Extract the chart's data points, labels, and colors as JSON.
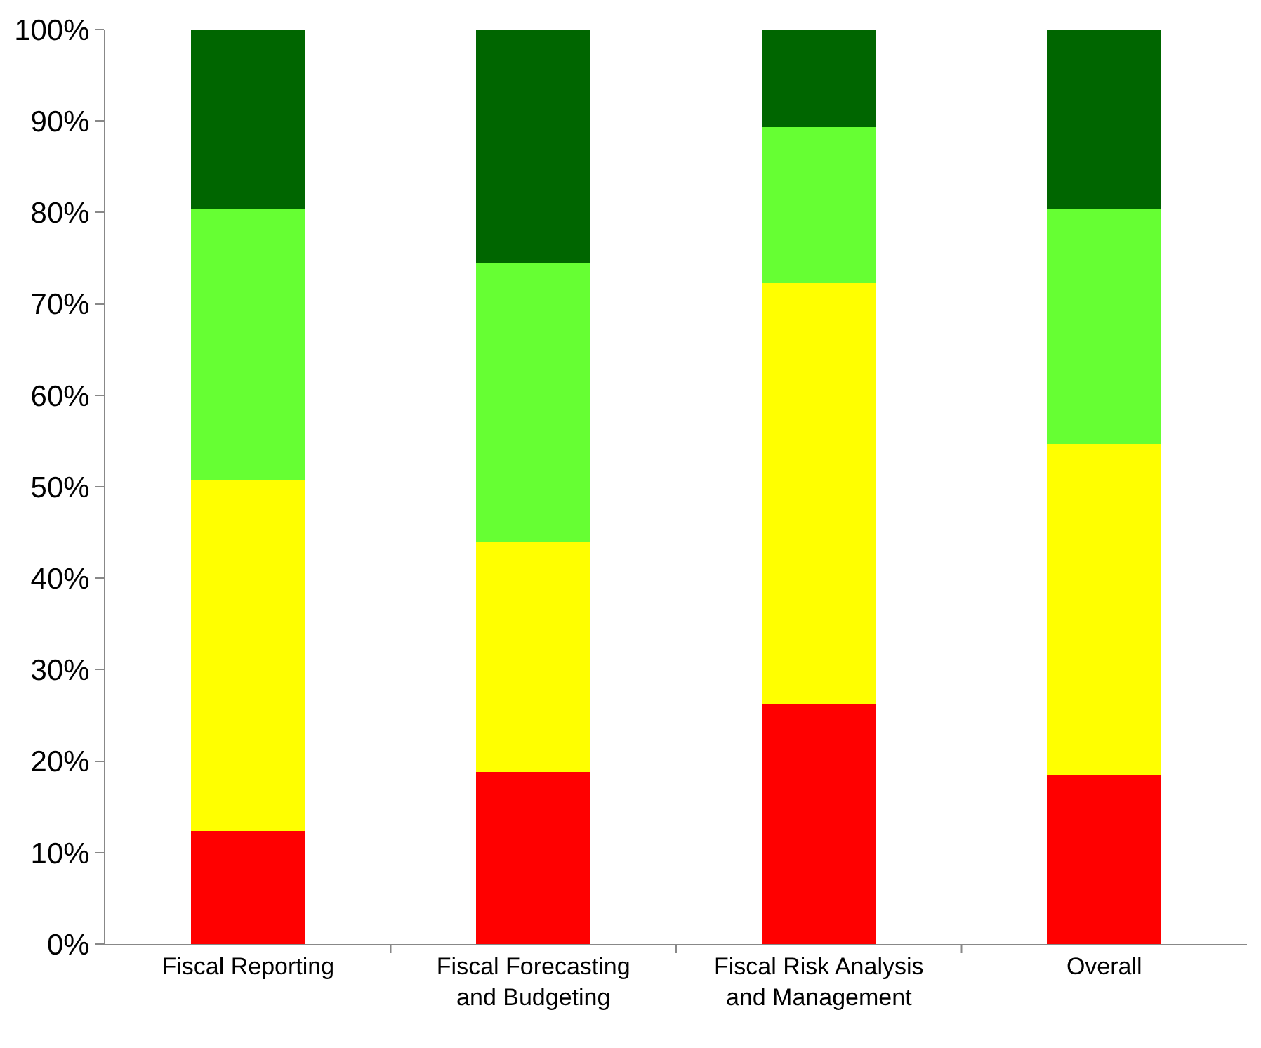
{
  "chart_data": {
    "type": "bar",
    "stacked": true,
    "categories": [
      "Fiscal Reporting",
      "Fiscal Forecasting\nand Budgeting",
      "Fiscal Risk Analysis\nand Management",
      "Overall"
    ],
    "series": [
      {
        "color": "#ff0000",
        "values": [
          12.4,
          18.8,
          26.3,
          18.4
        ]
      },
      {
        "color": "#ffff00",
        "values": [
          38.3,
          25.2,
          46.0,
          36.3
        ]
      },
      {
        "color": "#66ff33",
        "values": [
          29.7,
          30.4,
          17.0,
          25.7
        ]
      },
      {
        "color": "#006600",
        "values": [
          19.6,
          25.6,
          10.7,
          19.6
        ]
      }
    ],
    "ylim": [
      0,
      100
    ],
    "yticks": [
      {
        "value": 0,
        "label": "0%"
      },
      {
        "value": 10,
        "label": "10%"
      },
      {
        "value": 20,
        "label": "20%"
      },
      {
        "value": 30,
        "label": "30%"
      },
      {
        "value": 40,
        "label": "40%"
      },
      {
        "value": 50,
        "label": "50%"
      },
      {
        "value": 60,
        "label": "60%"
      },
      {
        "value": 70,
        "label": "70%"
      },
      {
        "value": 80,
        "label": "80%"
      },
      {
        "value": 90,
        "label": "90%"
      },
      {
        "value": 100,
        "label": "100%"
      }
    ],
    "orientation": "vertical"
  }
}
